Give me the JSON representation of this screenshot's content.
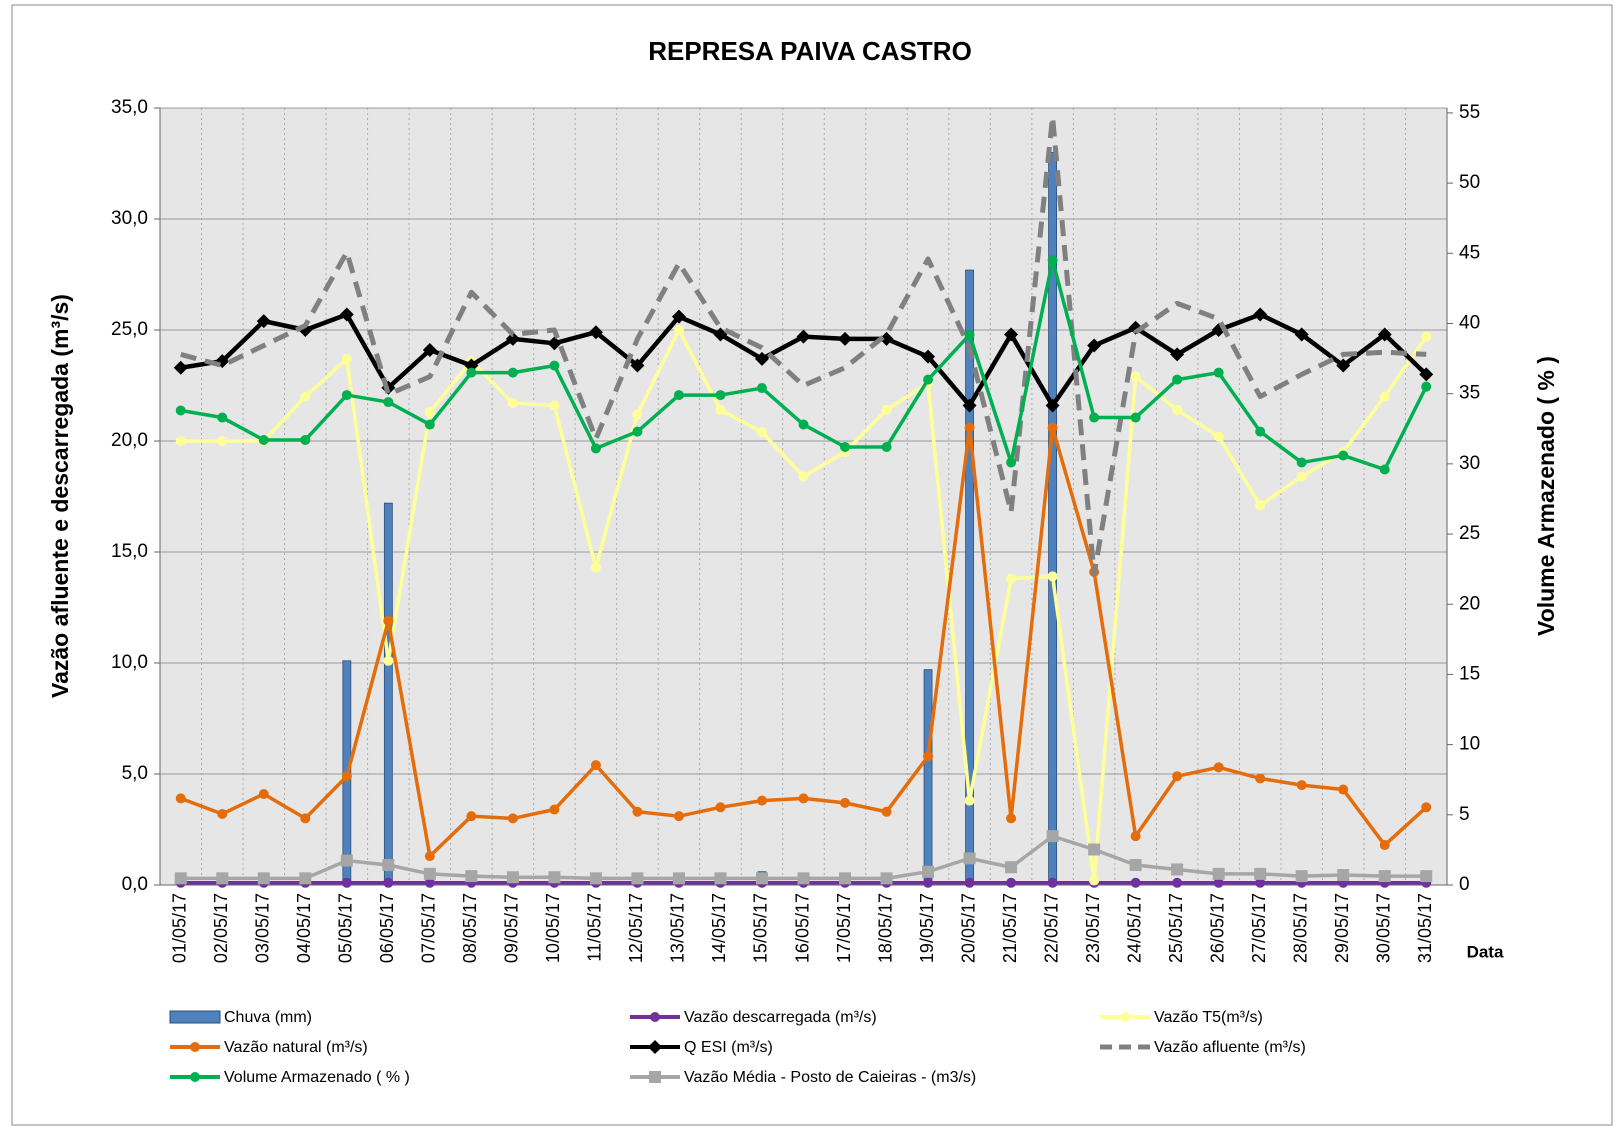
{
  "chart_data": {
    "type": "combo",
    "title": "REPRESA PAIVA CASTRO",
    "y_label": "Vazão afluente e descarregada (m³/s)",
    "y2_label": "Volume Armazenado ( % )",
    "x_label": "Data",
    "categories": [
      "01/05/17",
      "02/05/17",
      "03/05/17",
      "04/05/17",
      "05/05/17",
      "06/05/17",
      "07/05/17",
      "08/05/17",
      "09/05/17",
      "10/05/17",
      "11/05/17",
      "12/05/17",
      "13/05/17",
      "14/05/17",
      "15/05/17",
      "16/05/17",
      "17/05/17",
      "18/05/17",
      "19/05/17",
      "20/05/17",
      "21/05/17",
      "22/05/17",
      "23/05/17",
      "24/05/17",
      "25/05/17",
      "26/05/17",
      "27/05/17",
      "28/05/17",
      "29/05/17",
      "30/05/17",
      "31/05/17"
    ],
    "ylim": [
      0,
      35
    ],
    "yticks": [
      {
        "value": 0,
        "label": "0,0"
      },
      {
        "value": 5,
        "label": "5,0"
      },
      {
        "value": 10,
        "label": "10,0"
      },
      {
        "value": 15,
        "label": "15,0"
      },
      {
        "value": 20,
        "label": "20,0"
      },
      {
        "value": 25,
        "label": "25,0"
      },
      {
        "value": 30,
        "label": "30,0"
      },
      {
        "value": 35,
        "label": "35,0"
      }
    ],
    "y2lim": [
      0,
      55.35
    ],
    "y2ticks": [
      0,
      5,
      10,
      15,
      20,
      25,
      30,
      35,
      40,
      45,
      50,
      55
    ],
    "grid": true,
    "series": [
      {
        "name": "Chuva (mm)",
        "type": "bar",
        "color": "#4f81bd",
        "values": [
          0,
          0,
          0,
          0,
          10.1,
          17.2,
          0,
          0,
          0,
          0,
          0,
          0,
          0,
          0,
          0.6,
          0,
          0,
          0,
          9.7,
          27.7,
          0,
          33.0,
          0,
          0,
          0,
          0,
          0,
          0,
          0,
          0,
          0
        ]
      },
      {
        "name": "Vazão descarregada (m³/s)",
        "type": "line",
        "color": "#7030a0",
        "marker": "circle",
        "values": [
          0.1,
          0.1,
          0.1,
          0.1,
          0.1,
          0.1,
          0.1,
          0.1,
          0.1,
          0.1,
          0.1,
          0.1,
          0.1,
          0.1,
          0.1,
          0.1,
          0.1,
          0.1,
          0.1,
          0.1,
          0.1,
          0.1,
          0.1,
          0.1,
          0.1,
          0.1,
          0.1,
          0.1,
          0.1,
          0.1,
          0.1
        ]
      },
      {
        "name": "Vazão T5(m³/s)",
        "type": "line",
        "color": "#ffff99",
        "marker": "circle",
        "values": [
          20.0,
          20.0,
          20.0,
          22.0,
          23.7,
          10.1,
          21.3,
          23.6,
          21.7,
          21.6,
          14.3,
          21.2,
          25.0,
          21.4,
          20.4,
          18.4,
          19.5,
          21.4,
          22.6,
          3.8,
          13.8,
          13.9,
          0.2,
          22.9,
          21.4,
          20.2,
          17.1,
          18.4,
          19.5,
          22.0,
          24.7
        ]
      },
      {
        "name": "Vazão natural (m³/s)",
        "type": "line",
        "color": "#e46c0a",
        "marker": "circle",
        "values": [
          3.9,
          3.2,
          4.1,
          3.0,
          4.9,
          11.9,
          1.3,
          3.1,
          3.0,
          3.4,
          5.4,
          3.3,
          3.1,
          3.5,
          3.8,
          3.9,
          3.7,
          3.3,
          5.8,
          20.6,
          3.0,
          20.6,
          14.1,
          2.2,
          4.9,
          5.3,
          4.8,
          4.5,
          4.3,
          1.8,
          3.5
        ]
      },
      {
        "name": "Q ESI (m³/s)",
        "type": "line",
        "color": "#000000",
        "marker": "diamond",
        "values": [
          23.3,
          23.6,
          25.4,
          25.0,
          25.7,
          22.4,
          24.1,
          23.4,
          24.6,
          24.4,
          24.9,
          23.4,
          25.6,
          24.8,
          23.7,
          24.7,
          24.6,
          24.6,
          23.8,
          21.6,
          24.8,
          21.6,
          24.3,
          25.1,
          23.9,
          25.0,
          25.7,
          24.8,
          23.4,
          24.8,
          23.0
        ]
      },
      {
        "name": "Vazão afluente (m³/s)",
        "type": "line",
        "color": "#808080",
        "dashed": true,
        "values": [
          23.9,
          23.4,
          24.3,
          25.2,
          28.5,
          22.1,
          22.9,
          26.7,
          24.8,
          25.0,
          20.1,
          24.6,
          28.0,
          25.1,
          24.2,
          22.5,
          23.3,
          24.8,
          28.2,
          24.2,
          16.8,
          34.6,
          14.0,
          24.9,
          26.2,
          25.5,
          22.0,
          23.0,
          23.9,
          24.0,
          23.9
        ]
      },
      {
        "name": "Volume Armazenado ( % )",
        "type": "line",
        "axis": "y2",
        "color": "#00b050",
        "marker": "circle",
        "values": [
          33.8,
          33.3,
          31.7,
          31.7,
          34.9,
          34.4,
          32.8,
          36.5,
          36.5,
          37.0,
          31.1,
          32.3,
          34.9,
          34.9,
          35.4,
          32.8,
          31.2,
          31.2,
          36.0,
          39.2,
          30.1,
          44.5,
          33.3,
          33.3,
          36.0,
          36.5,
          32.3,
          30.1,
          30.6,
          29.6,
          35.5
        ]
      },
      {
        "name": "Vazão Média - Posto de Caieiras - (m3/s)",
        "type": "line",
        "color": "#a6a6a6",
        "marker": "square",
        "values": [
          0.3,
          0.3,
          0.3,
          0.3,
          1.1,
          0.9,
          0.5,
          0.4,
          0.35,
          0.35,
          0.3,
          0.3,
          0.3,
          0.3,
          0.3,
          0.3,
          0.3,
          0.3,
          0.6,
          1.2,
          0.8,
          2.2,
          1.6,
          0.9,
          0.7,
          0.5,
          0.5,
          0.4,
          0.45,
          0.4,
          0.4
        ]
      }
    ]
  }
}
